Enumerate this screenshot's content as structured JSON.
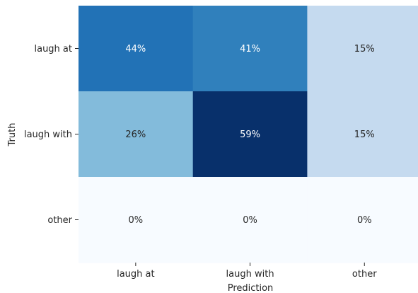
{
  "chart_data": {
    "type": "heatmap",
    "title": "",
    "xlabel": "Prediction",
    "ylabel": "Truth",
    "x_categories": [
      "laugh at",
      "laugh with",
      "other"
    ],
    "y_categories": [
      "laugh at",
      "laugh with",
      "other"
    ],
    "values": [
      [
        0.44,
        0.41,
        0.15
      ],
      [
        0.26,
        0.59,
        0.15
      ],
      [
        0.0,
        0.0,
        0.0
      ]
    ],
    "cell_labels": [
      [
        "44%",
        "41%",
        "15%"
      ],
      [
        "26%",
        "59%",
        "15%"
      ],
      [
        "0%",
        "0%",
        "0%"
      ]
    ],
    "colormap": "Blues",
    "vmin": 0,
    "vmax": 0.59,
    "colorbar": false,
    "colors": [
      "#f7fbff",
      "#deebf7",
      "#c6dbef",
      "#9ecae1",
      "#6baed6",
      "#4292c6",
      "#2171b5",
      "#08519c",
      "#08306b"
    ]
  }
}
